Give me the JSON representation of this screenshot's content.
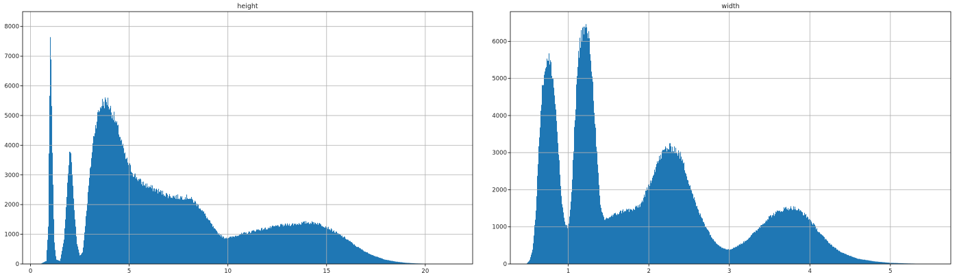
{
  "chart_data": [
    {
      "type": "histogram",
      "title": "height",
      "xlabel": "",
      "ylabel": "",
      "xlim": [
        -0.4,
        22.4
      ],
      "ylim": [
        0,
        8500
      ],
      "xticks": [
        0,
        5,
        10,
        15,
        20
      ],
      "yticks": [
        0,
        1000,
        2000,
        3000,
        4000,
        5000,
        6000,
        7000,
        8000
      ],
      "grid": true,
      "color": "#1f77b4",
      "profile": {
        "x": [
          0.0,
          0.5,
          0.8,
          0.9,
          0.95,
          1.0,
          1.05,
          1.1,
          1.2,
          1.3,
          1.5,
          1.7,
          1.9,
          2.0,
          2.1,
          2.2,
          2.35,
          2.5,
          2.65,
          2.8,
          3.0,
          3.2,
          3.4,
          3.6,
          3.8,
          3.9,
          4.0,
          4.2,
          4.5,
          4.8,
          5.2,
          5.6,
          6.0,
          6.5,
          7.0,
          7.5,
          8.0,
          8.3,
          8.6,
          9.0,
          9.4,
          9.8,
          10.2,
          10.6,
          11.0,
          11.5,
          12.0,
          12.5,
          13.0,
          13.5,
          14.0,
          14.5,
          15.0,
          15.5,
          16.0,
          16.5,
          17.0,
          17.5,
          18.0,
          18.5,
          19.0,
          19.5,
          20.0,
          20.5,
          21.0,
          21.5
        ],
        "y": [
          0,
          0,
          100,
          1200,
          4500,
          7800,
          7000,
          4000,
          800,
          150,
          100,
          800,
          3000,
          3900,
          3300,
          2000,
          700,
          280,
          400,
          1500,
          3000,
          4300,
          5000,
          5400,
          5450,
          5500,
          5300,
          5000,
          4400,
          3600,
          3050,
          2750,
          2600,
          2450,
          2300,
          2250,
          2250,
          2100,
          1900,
          1500,
          1100,
          880,
          900,
          1000,
          1050,
          1150,
          1200,
          1280,
          1320,
          1350,
          1400,
          1380,
          1250,
          1050,
          850,
          600,
          400,
          250,
          140,
          80,
          40,
          20,
          10,
          5,
          0,
          0
        ]
      }
    },
    {
      "type": "histogram",
      "title": "width",
      "xlabel": "",
      "ylabel": "",
      "xlim": [
        0.28,
        5.75
      ],
      "ylim": [
        0,
        6800
      ],
      "xticks": [
        1,
        2,
        3,
        4,
        5
      ],
      "yticks": [
        0,
        1000,
        2000,
        3000,
        4000,
        5000,
        6000
      ],
      "grid": true,
      "color": "#1f77b4",
      "profile": {
        "x": [
          0.3,
          0.4,
          0.48,
          0.52,
          0.56,
          0.6,
          0.64,
          0.68,
          0.72,
          0.76,
          0.8,
          0.84,
          0.88,
          0.92,
          0.96,
          1.0,
          1.04,
          1.08,
          1.12,
          1.16,
          1.2,
          1.24,
          1.28,
          1.32,
          1.36,
          1.4,
          1.45,
          1.5,
          1.55,
          1.6,
          1.7,
          1.8,
          1.9,
          2.0,
          2.1,
          2.2,
          2.3,
          2.4,
          2.5,
          2.6,
          2.7,
          2.8,
          2.9,
          3.0,
          3.1,
          3.2,
          3.3,
          3.4,
          3.5,
          3.6,
          3.7,
          3.8,
          3.9,
          4.0,
          4.1,
          4.2,
          4.3,
          4.4,
          4.5,
          4.6,
          4.8,
          5.0,
          5.2,
          5.4,
          5.6
        ],
        "y": [
          0,
          0,
          0,
          100,
          400,
          1500,
          3500,
          4800,
          5400,
          5500,
          5200,
          4300,
          3000,
          1600,
          1100,
          950,
          1800,
          3800,
          5500,
          6200,
          6300,
          6300,
          5600,
          4300,
          2800,
          1500,
          1200,
          1250,
          1300,
          1350,
          1450,
          1450,
          1600,
          2100,
          2700,
          3100,
          3150,
          2900,
          2200,
          1500,
          1050,
          650,
          450,
          380,
          480,
          620,
          820,
          1050,
          1270,
          1400,
          1500,
          1510,
          1400,
          1200,
          900,
          650,
          450,
          300,
          220,
          140,
          70,
          30,
          15,
          5,
          0
        ]
      }
    }
  ]
}
